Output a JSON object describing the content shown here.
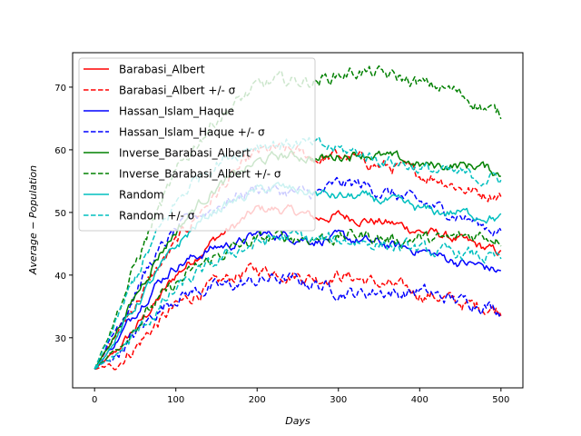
{
  "chart_data": {
    "type": "line",
    "title": "",
    "xlabel": "Days",
    "ylabel": "Average − Population",
    "xlim": [
      -27,
      527
    ],
    "ylim": [
      22,
      75.5
    ],
    "xticks": [
      0,
      100,
      200,
      300,
      400,
      500
    ],
    "yticks": [
      30,
      40,
      50,
      60,
      70
    ],
    "grid": false,
    "legend_position": "top-left",
    "series": [
      {
        "name": "Barabasi_Albert",
        "color": "#ff0000",
        "style": "solid",
        "x": [
          0,
          25,
          50,
          75,
          100,
          125,
          150,
          175,
          200,
          225,
          250,
          275,
          300,
          325,
          350,
          375,
          400,
          425,
          450,
          475,
          500
        ],
        "y": [
          25,
          27.5,
          31.5,
          35.5,
          40,
          43,
          46,
          48,
          50.5,
          50.5,
          50,
          49,
          49.5,
          49,
          48.5,
          48,
          47,
          46.5,
          45.5,
          44.5,
          43.5
        ]
      },
      {
        "name": "Barabasi_Albert +/- σ",
        "color": "#ff0000",
        "style": "dashed",
        "x": [
          0,
          25,
          50,
          75,
          100,
          125,
          150,
          175,
          200,
          225,
          250,
          275,
          300,
          325,
          350,
          375,
          400,
          425,
          450,
          475,
          500
        ],
        "y": [
          25,
          25.5,
          28.5,
          32,
          35,
          37,
          38.5,
          40,
          41,
          40.5,
          40,
          39.5,
          40,
          39.5,
          38.5,
          38,
          37,
          36.5,
          35.5,
          35,
          34.5
        ]
      },
      {
        "name": "",
        "color": "#ff0000",
        "style": "dashed",
        "x": [
          0,
          25,
          50,
          75,
          100,
          125,
          150,
          175,
          200,
          225,
          250,
          275,
          300,
          325,
          350,
          375,
          400,
          425,
          450,
          475,
          500
        ],
        "y": [
          25,
          30,
          35.5,
          40.5,
          45,
          49.5,
          53,
          56.5,
          59.5,
          60,
          59.5,
          58.5,
          59,
          58.5,
          57.5,
          57,
          56,
          55.5,
          54,
          53,
          53
        ]
      },
      {
        "name": "Hassan_Islam_Haque",
        "color": "#0000ff",
        "style": "solid",
        "x": [
          0,
          25,
          50,
          75,
          100,
          125,
          150,
          175,
          200,
          225,
          250,
          275,
          300,
          325,
          350,
          375,
          400,
          425,
          450,
          475,
          500
        ],
        "y": [
          25,
          29,
          34,
          38.5,
          41.5,
          43,
          44.5,
          45,
          46.5,
          46.5,
          46,
          45.5,
          46,
          45.5,
          45,
          44.5,
          44,
          43,
          42,
          41.5,
          40.5
        ]
      },
      {
        "name": "Hassan_Islam_Haque +/- σ",
        "color": "#0000ff",
        "style": "dashed",
        "x": [
          0,
          25,
          50,
          75,
          100,
          125,
          150,
          175,
          200,
          225,
          250,
          275,
          300,
          325,
          350,
          375,
          400,
          425,
          450,
          475,
          500
        ],
        "y": [
          25,
          27,
          30.5,
          34,
          36.5,
          37.5,
          38,
          38.5,
          39,
          39.5,
          39,
          38.5,
          37.5,
          37,
          37.5,
          37,
          37.5,
          36.5,
          36,
          35.5,
          34.5
        ]
      },
      {
        "name": "",
        "color": "#0000ff",
        "style": "dashed",
        "x": [
          0,
          25,
          50,
          75,
          100,
          125,
          150,
          175,
          200,
          225,
          250,
          275,
          300,
          325,
          350,
          375,
          400,
          425,
          450,
          475,
          500
        ],
        "y": [
          25,
          31,
          37.5,
          43,
          47,
          49.5,
          51,
          52.5,
          54,
          53.5,
          53,
          53,
          54.5,
          54.5,
          53.5,
          52.5,
          51.5,
          50.5,
          49.5,
          48,
          47
        ]
      },
      {
        "name": "Inverse_Barabasi_Albert",
        "color": "#008000",
        "style": "solid",
        "x": [
          0,
          25,
          50,
          75,
          100,
          125,
          150,
          175,
          200,
          225,
          250,
          275,
          300,
          325,
          350,
          375,
          400,
          425,
          450,
          475,
          500
        ],
        "y": [
          25,
          30.5,
          36.5,
          42.5,
          47,
          51,
          54,
          56,
          58,
          59,
          59,
          58.5,
          59,
          59.5,
          59,
          58.5,
          57.5,
          57.5,
          57.5,
          57.5,
          56
        ]
      },
      {
        "name": "Inverse_Barabasi_Albert +/- σ",
        "color": "#008000",
        "style": "dashed",
        "x": [
          0,
          25,
          50,
          75,
          100,
          125,
          150,
          175,
          200,
          225,
          250,
          275,
          300,
          325,
          350,
          375,
          400,
          425,
          450,
          475,
          500
        ],
        "y": [
          25,
          28,
          32,
          35.5,
          38.5,
          41,
          43,
          44.5,
          45.5,
          46,
          46,
          46,
          46,
          46.5,
          46,
          45.5,
          46,
          45.5,
          46,
          46.5,
          46
        ]
      },
      {
        "name": "",
        "color": "#008000",
        "style": "dashed",
        "x": [
          0,
          25,
          50,
          75,
          100,
          125,
          150,
          175,
          200,
          225,
          250,
          275,
          300,
          325,
          350,
          375,
          400,
          425,
          450,
          475,
          500
        ],
        "y": [
          25,
          33,
          41.5,
          49.5,
          56,
          61,
          65,
          67.5,
          70,
          71,
          71,
          71,
          72,
          72.5,
          72,
          71.5,
          70.5,
          70,
          69,
          67,
          65.5
        ]
      },
      {
        "name": "Random",
        "color": "#00bfbf",
        "style": "solid",
        "x": [
          0,
          25,
          50,
          75,
          100,
          125,
          150,
          175,
          200,
          225,
          250,
          275,
          300,
          325,
          350,
          375,
          400,
          425,
          450,
          475,
          500
        ],
        "y": [
          25,
          29.5,
          35,
          40,
          44.5,
          48,
          50.5,
          52,
          53.5,
          54,
          53.5,
          53,
          52.5,
          52.5,
          52,
          51.5,
          50.5,
          50,
          50,
          49.5,
          49
        ]
      },
      {
        "name": "Random +/- σ",
        "color": "#00bfbf",
        "style": "dashed",
        "x": [
          0,
          25,
          50,
          75,
          100,
          125,
          150,
          175,
          200,
          225,
          250,
          275,
          300,
          325,
          350,
          375,
          400,
          425,
          450,
          475,
          500
        ],
        "y": [
          25,
          27,
          30.5,
          34,
          37.5,
          40,
          42,
          44,
          45,
          46,
          46,
          45.5,
          45.5,
          45.5,
          45,
          44.5,
          44,
          43.5,
          43.5,
          43,
          42.5
        ]
      },
      {
        "name": "",
        "color": "#00bfbf",
        "style": "dashed",
        "x": [
          0,
          25,
          50,
          75,
          100,
          125,
          150,
          175,
          200,
          225,
          250,
          275,
          300,
          325,
          350,
          375,
          400,
          425,
          450,
          475,
          500
        ],
        "y": [
          25,
          32,
          39.5,
          46,
          51.5,
          55.5,
          58,
          59.5,
          61,
          61,
          61,
          60.5,
          60,
          59.5,
          58.5,
          58,
          57,
          56.5,
          56,
          55.5,
          55.5
        ]
      }
    ]
  }
}
